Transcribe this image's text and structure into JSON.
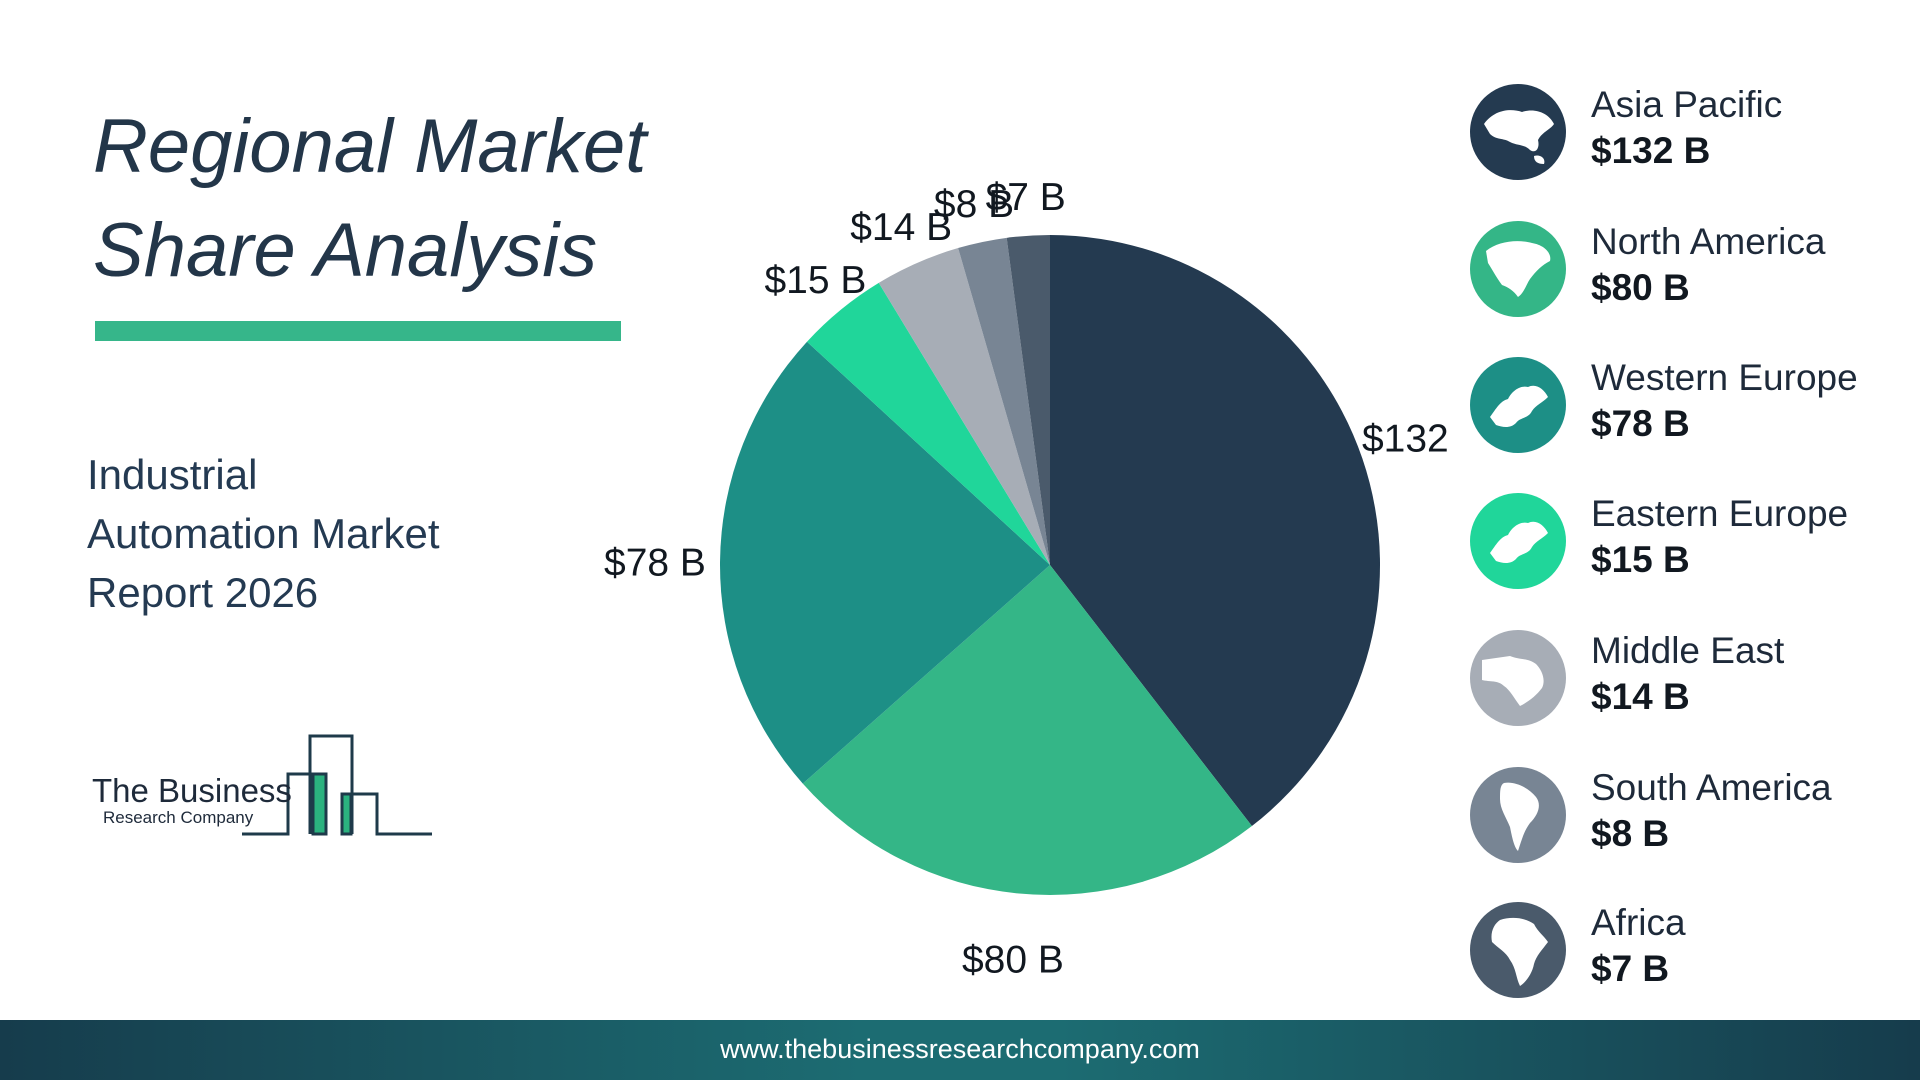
{
  "title_line1": "Regional Market",
  "title_line2": "Share Analysis",
  "subtitle_line1": "Industrial",
  "subtitle_line2": "Automation Market",
  "subtitle_line3": "Report 2026",
  "logo": {
    "line1": "The Business",
    "line2": "Research Company"
  },
  "footer_url": "www.thebusinessresearchcompany.com",
  "colors": {
    "accent": "#36b68a",
    "title": "#233649",
    "asia_pacific": "#243a50",
    "north_america": "#34b687",
    "western_europe": "#1d8f86",
    "eastern_europe": "#20d69a",
    "middle_east": "#a7adb6",
    "south_america": "#788594",
    "africa": "#4a5a6b"
  },
  "chart_data": {
    "type": "pie",
    "title": "Regional Market Share Analysis",
    "unit": "$ B",
    "categories": [
      "Asia Pacific",
      "North America",
      "Western Europe",
      "Eastern Europe",
      "Middle East",
      "South America",
      "Africa"
    ],
    "values": [
      132,
      80,
      78,
      15,
      14,
      8,
      7
    ],
    "slice_labels": [
      "$132 B",
      "$80 B",
      "$78 B",
      "$15 B",
      "$14 B",
      "$8 B",
      "$7 B"
    ],
    "legend_placement": "right"
  },
  "legend": [
    {
      "name": "Asia Pacific",
      "value": "$132 B",
      "icon": "asia-map-icon"
    },
    {
      "name": "North America",
      "value": "$80 B",
      "icon": "north-america-map-icon"
    },
    {
      "name": "Western Europe",
      "value": "$78 B",
      "icon": "europe-map-icon"
    },
    {
      "name": "Eastern Europe",
      "value": "$15 B",
      "icon": "europe-map-icon"
    },
    {
      "name": "Middle East",
      "value": "$14 B",
      "icon": "middle-east-map-icon"
    },
    {
      "name": "South America",
      "value": "$8 B",
      "icon": "south-america-map-icon"
    },
    {
      "name": "Africa",
      "value": "$7 B",
      "icon": "africa-map-icon"
    }
  ]
}
